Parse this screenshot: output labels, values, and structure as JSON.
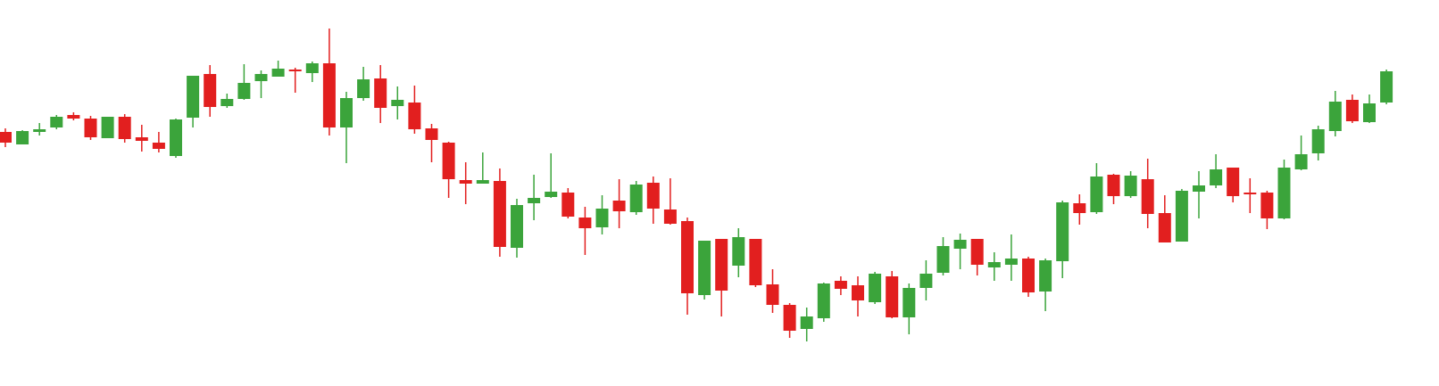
{
  "chart_data": {
    "type": "candlestick",
    "ylim": [
      0,
      433
    ],
    "up_color": "#3ba43b",
    "down_color": "#e21f1f",
    "open": [
      285,
      271,
      285,
      290,
      304,
      300,
      278,
      302,
      279,
      273,
      258,
      301,
      350,
      314,
      322,
      342,
      347,
      355,
      351,
      362,
      290,
      323,
      345,
      314,
      318,
      289,
      273,
      231,
      227,
      230,
      155,
      205,
      212,
      217,
      189,
      178,
      208,
      195,
      228,
      198,
      185,
      102,
      165,
      135,
      165,
      114,
      91,
      64,
      76,
      118,
      113,
      94,
      123,
      77,
      110,
      127,
      154,
      165,
      133,
      136,
      143,
      106,
      140,
      205,
      195,
      237,
      213,
      232,
      194,
      162,
      218,
      225,
      245,
      217,
      217,
      188,
      243,
      261,
      286,
      321,
      296,
      318
    ],
    "high": [
      289,
      287,
      295,
      304,
      307,
      303,
      302,
      305,
      293,
      285,
      300,
      348,
      360,
      328,
      361,
      354,
      365,
      357,
      364,
      401,
      330,
      358,
      360,
      336,
      337,
      294,
      274,
      251,
      262,
      244,
      210,
      237,
      261,
      222,
      201,
      214,
      232,
      230,
      235,
      233,
      189,
      163,
      165,
      177,
      165,
      131,
      93,
      88,
      116,
      123,
      123,
      128,
      129,
      115,
      141,
      167,
      171,
      165,
      150,
      170,
      145,
      143,
      208,
      215,
      250,
      238,
      241,
      255,
      214,
      221,
      241,
      260,
      245,
      233,
      219,
      254,
      281,
      292,
      331,
      327,
      327,
      355
    ],
    "low": [
      268,
      271,
      281,
      288,
      298,
      276,
      278,
      273,
      263,
      262,
      256,
      290,
      302,
      312,
      321,
      323,
      347,
      329,
      341,
      281,
      250,
      320,
      295,
      299,
      283,
      251,
      211,
      204,
      227,
      145,
      144,
      186,
      211,
      188,
      147,
      170,
      177,
      192,
      182,
      181,
      80,
      97,
      78,
      122,
      111,
      82,
      54,
      50,
      72,
      102,
      78,
      92,
      76,
      58,
      96,
      124,
      131,
      124,
      118,
      118,
      100,
      84,
      121,
      181,
      193,
      204,
      211,
      177,
      161,
      162,
      188,
      222,
      206,
      194,
      176,
      187,
      242,
      253,
      280,
      295,
      295,
      316
    ],
    "close": [
      273,
      286,
      288,
      302,
      300,
      279,
      302,
      277,
      275,
      266,
      299,
      348,
      313,
      322,
      340,
      350,
      356,
      353,
      362,
      290,
      323,
      344,
      312,
      321,
      288,
      276,
      232,
      227,
      231,
      156,
      203,
      211,
      218,
      190,
      177,
      199,
      196,
      226,
      199,
      182,
      104,
      163,
      107,
      167,
      113,
      91,
      62,
      78,
      115,
      109,
      96,
      126,
      77,
      110,
      126,
      157,
      164,
      136,
      139,
      143,
      105,
      141,
      206,
      194,
      235,
      213,
      236,
      193,
      161,
      219,
      225,
      243,
      213,
      215,
      188,
      245,
      260,
      288,
      319,
      297,
      317,
      353
    ]
  }
}
